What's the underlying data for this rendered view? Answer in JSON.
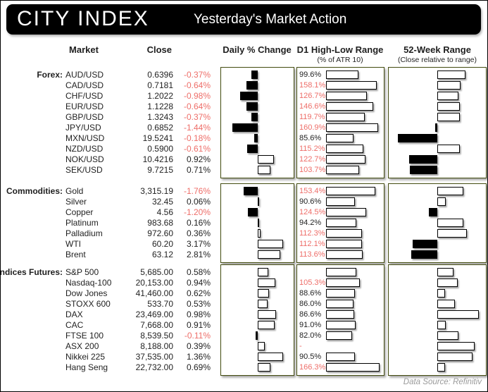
{
  "header": {
    "logo": "CITY INDEX",
    "title": "Yesterday's Market Action"
  },
  "columns": {
    "market": "Market",
    "close": "Close",
    "daily": "Daily % Change",
    "d1": "D1 High-Low Range",
    "d1_sub": "(% of ATR 10)",
    "w52": "52-Week Range",
    "w52_sub": "(Close relative to range)"
  },
  "footer": {
    "source": "Data Source: Refinitiv"
  },
  "colors": {
    "negative_text": "#ee6e69",
    "box_border": "#434c10",
    "header_bg": "#000000",
    "header_text": "#ffffff",
    "body_text": "#1f1f1f",
    "footer_text": "#9a9a9a"
  },
  "chart_data": {
    "type": "table",
    "title": "Yesterday's Market Action",
    "legend": "Daily % bars: black = negative, white = positive. D1 range labels red when above 100%. 52-week bars: white right of center = close in upper half of range, black left = lower half.",
    "groups": [
      {
        "label": "Forex:",
        "rows": [
          {
            "market": "AUD/USD",
            "close": "0.6396",
            "daily_label": "-0.37%",
            "daily_pct": -0.37,
            "d1_label": "99.6%",
            "d1_pct": 99.6,
            "d1_red": false,
            "w52": 0.65
          },
          {
            "market": "CAD/USD",
            "close": "0.7181",
            "daily_label": "-0.64%",
            "daily_pct": -0.64,
            "d1_label": "158.1%",
            "d1_pct": 158.1,
            "d1_red": true,
            "w52": 0.54
          },
          {
            "market": "CHF/USD",
            "close": "1.2022",
            "daily_label": "-0.98%",
            "daily_pct": -0.98,
            "d1_label": "126.7%",
            "d1_pct": 126.7,
            "d1_red": true,
            "w52": 0.49
          },
          {
            "market": "EUR/USD",
            "close": "1.1228",
            "daily_label": "-0.64%",
            "daily_pct": -0.64,
            "d1_label": "146.6%",
            "d1_pct": 146.6,
            "d1_red": true,
            "w52": 0.52
          },
          {
            "market": "GBP/USD",
            "close": "1.3243",
            "daily_label": "-0.37%",
            "daily_pct": -0.37,
            "d1_label": "119.7%",
            "d1_pct": 119.7,
            "d1_red": true,
            "w52": 0.52
          },
          {
            "market": "JPY/USD",
            "close": "0.6852",
            "daily_label": "-1.44%",
            "daily_pct": -1.44,
            "d1_label": "160.9%",
            "d1_pct": 160.9,
            "d1_red": true,
            "w52": -0.05
          },
          {
            "market": "MXN/USD",
            "close": "19.5241",
            "daily_label": "-0.18%",
            "daily_pct": -0.18,
            "d1_label": "85.6%",
            "d1_pct": 85.6,
            "d1_red": false,
            "w52": -0.91
          },
          {
            "market": "NZD/USD",
            "close": "0.5900",
            "daily_label": "-0.61%",
            "daily_pct": -0.61,
            "d1_label": "115.2%",
            "d1_pct": 115.2,
            "d1_red": true,
            "w52": 0.52
          },
          {
            "market": "NOK/USD",
            "close": "10.4216",
            "daily_label": "0.92%",
            "daily_pct": 0.92,
            "d1_label": "122.7%",
            "d1_pct": 122.7,
            "d1_red": true,
            "w52": -0.65
          },
          {
            "market": "SEK/USD",
            "close": "9.7215",
            "daily_label": "0.71%",
            "daily_pct": 0.71,
            "d1_label": "103.7%",
            "d1_pct": 103.7,
            "d1_red": true,
            "w52": -0.63
          }
        ]
      },
      {
        "label": "Commodities:",
        "rows": [
          {
            "market": "Gold",
            "close": "3,315.19",
            "daily_label": "-1.76%",
            "daily_pct": -1.76,
            "d1_label": "153.4%",
            "d1_pct": 153.4,
            "d1_red": true,
            "w52": 0.59
          },
          {
            "market": "Silver",
            "close": "32.45",
            "daily_label": "0.06%",
            "daily_pct": 0.06,
            "d1_label": "90.6%",
            "d1_pct": 90.6,
            "d1_red": false,
            "w52": 0.2
          },
          {
            "market": "Copper",
            "close": "4.56",
            "daily_label": "-1.20%",
            "daily_pct": -1.2,
            "d1_label": "124.5%",
            "d1_pct": 124.5,
            "d1_red": true,
            "w52": -0.19
          },
          {
            "market": "Platinum",
            "close": "983.68",
            "daily_label": "0.16%",
            "daily_pct": 0.16,
            "d1_label": "94.2%",
            "d1_pct": 94.2,
            "d1_red": false,
            "w52": 0.6
          },
          {
            "market": "Palladium",
            "close": "972.60",
            "daily_label": "0.36%",
            "daily_pct": 0.36,
            "d1_label": "112.3%",
            "d1_pct": 112.3,
            "d1_red": true,
            "w52": 0.67
          },
          {
            "market": "WTI",
            "close": "60.20",
            "daily_label": "3.17%",
            "daily_pct": 3.17,
            "d1_label": "112.1%",
            "d1_pct": 112.1,
            "d1_red": true,
            "w52": -0.56
          },
          {
            "market": "Brent",
            "close": "63.12",
            "daily_label": "2.81%",
            "daily_pct": 2.81,
            "d1_label": "113.6%",
            "d1_pct": 113.6,
            "d1_red": true,
            "w52": -0.59
          }
        ]
      },
      {
        "label": "Indices Futures:",
        "rows": [
          {
            "market": "S&P 500",
            "close": "5,685.00",
            "daily_label": "0.58%",
            "daily_pct": 0.58,
            "d1_label": "",
            "d1_pct": 94.0,
            "d1_red": false,
            "w52": 0.37
          },
          {
            "market": "Nasdaq-100",
            "close": "20,153.00",
            "daily_label": "0.94%",
            "daily_pct": 0.94,
            "d1_label": "105.3%",
            "d1_pct": 105.3,
            "d1_red": true,
            "w52": 0.46
          },
          {
            "market": "Dow Jones",
            "close": "41,460.00",
            "daily_label": "0.62%",
            "daily_pct": 0.62,
            "d1_label": "88.6%",
            "d1_pct": 88.6,
            "d1_red": false,
            "w52": 0.18
          },
          {
            "market": "STOXX 600",
            "close": "533.70",
            "daily_label": "0.53%",
            "daily_pct": 0.53,
            "d1_label": "86.0%",
            "d1_pct": 86.0,
            "d1_red": false,
            "w52": 0.4
          },
          {
            "market": "DAX",
            "close": "23,469.00",
            "daily_label": "0.98%",
            "daily_pct": 0.98,
            "d1_label": "86.6%",
            "d1_pct": 86.6,
            "d1_red": false,
            "w52": 0.95
          },
          {
            "market": "CAC",
            "close": "7,668.00",
            "daily_label": "0.91%",
            "daily_pct": 0.91,
            "d1_label": "91.0%",
            "d1_pct": 91.0,
            "d1_red": false,
            "w52": 0.2
          },
          {
            "market": "FTSE 100",
            "close": "8,539.50",
            "daily_label": "-0.11%",
            "daily_pct": -0.11,
            "d1_label": "82.0%",
            "d1_pct": 82.0,
            "d1_red": false,
            "w52": 0.49
          },
          {
            "market": "ASX 200",
            "close": "8,188.00",
            "daily_label": "0.39%",
            "daily_pct": 0.39,
            "d1_label": "-",
            "d1_pct": null,
            "d1_red": true,
            "w52": 0.86
          },
          {
            "market": "Nikkei 225",
            "close": "37,535.00",
            "daily_label": "1.36%",
            "daily_pct": 1.36,
            "d1_label": "90.5%",
            "d1_pct": 90.5,
            "d1_red": false,
            "w52": 0.8
          },
          {
            "market": "Hang Seng",
            "close": "22,732.00",
            "daily_label": "0.69%",
            "daily_pct": 0.69,
            "d1_label": "166.3%",
            "d1_pct": 166.3,
            "d1_red": true,
            "w52": 0.18
          }
        ]
      }
    ]
  }
}
